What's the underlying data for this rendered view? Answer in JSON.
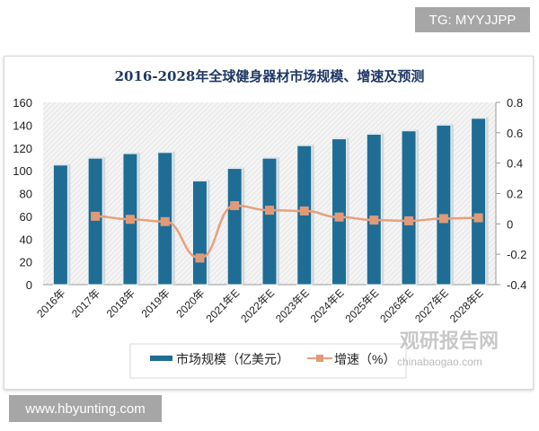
{
  "watermark_top": "TG: MYYJJPP",
  "watermark_bottom": "www.hbyunting.com",
  "source_watermark": {
    "cn": "观研报告网",
    "en": "chinabaogao.com"
  },
  "colors": {
    "bar": "#1f6d94",
    "line": "#e8a07d",
    "marker": "#e09a78",
    "title": "#1f3864"
  },
  "chart_data": {
    "type": "bar+line",
    "title": "2016-2028年全球健身器材市场规模、增速及预测",
    "categories": [
      "2016年",
      "2017年",
      "2018年",
      "2019年",
      "2020年",
      "2021年E",
      "2022年E",
      "2023年E",
      "2024年E",
      "2025年E",
      "2026年E",
      "2027年E",
      "2028年E"
    ],
    "series": [
      {
        "name": "市场规模（亿美元）",
        "type": "bar",
        "axis": "left",
        "values": [
          105,
          111,
          115,
          116,
          91,
          102,
          111,
          122,
          128,
          132,
          135,
          140,
          146
        ]
      },
      {
        "name": "增速（%）",
        "type": "line",
        "axis": "right",
        "values": [
          null,
          0.05,
          0.03,
          0.015,
          -0.225,
          0.12,
          0.09,
          0.085,
          0.045,
          0.025,
          0.02,
          0.035,
          0.04
        ]
      }
    ],
    "y_left": {
      "lim": [
        0,
        160
      ],
      "ticks": [
        "0",
        "20",
        "40",
        "60",
        "80",
        "100",
        "120",
        "140",
        "160"
      ]
    },
    "y_right": {
      "lim": [
        -0.4,
        0.8
      ],
      "ticks": [
        "-0.4",
        "-0.2",
        "0",
        "0.2",
        "0.4",
        "0.6",
        "0.8"
      ]
    },
    "legend": "bottom",
    "grid": false
  }
}
